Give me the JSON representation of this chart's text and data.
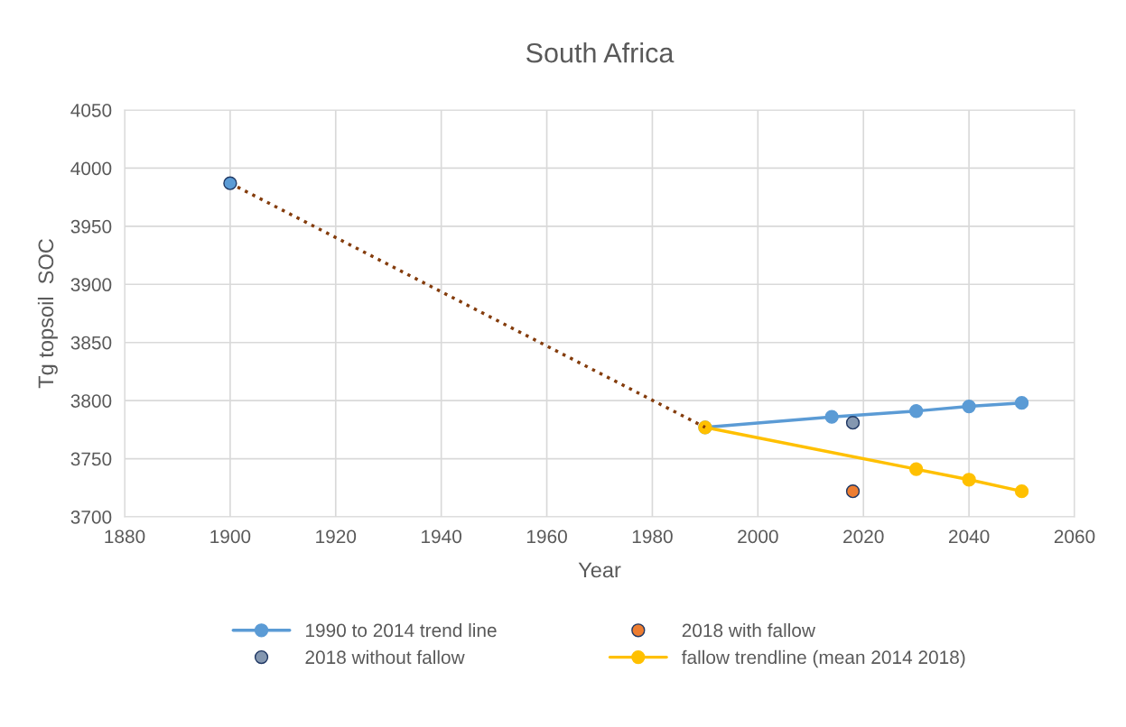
{
  "chart_data": {
    "type": "line",
    "title": "South Africa",
    "xlabel": "Year",
    "ylabel": "Tg topsoil  SOC",
    "xlim": [
      1880,
      2060
    ],
    "xticks": [
      1880,
      1900,
      1920,
      1940,
      1960,
      1980,
      2000,
      2020,
      2040,
      2060
    ],
    "ylim": [
      3700,
      4050
    ],
    "yticks": [
      3700,
      3750,
      3800,
      3850,
      3900,
      3950,
      4000,
      4050
    ],
    "grid": true,
    "legend": "bottom",
    "marker": "circle",
    "series": [
      {
        "name": "1990 to 2014 trend line",
        "color": "#5b9bd5",
        "x": [
          1990,
          2014,
          2030,
          2040,
          2050
        ],
        "values": [
          3777,
          3786,
          3791,
          3795,
          3798
        ]
      },
      {
        "name": "2018 with fallow",
        "type": "scatter",
        "color": "#ed7d31",
        "x": [
          2018
        ],
        "values": [
          3722
        ]
      },
      {
        "name": "2018 without fallow",
        "type": "scatter",
        "color": "#8497b0",
        "x": [
          2018
        ],
        "values": [
          3781
        ]
      },
      {
        "name": "fallow trendline (mean 2014 2018)",
        "color": "#ffc000",
        "x": [
          1990,
          2030,
          2040,
          2050
        ],
        "values": [
          3777,
          3741,
          3732,
          3722
        ]
      },
      {
        "color": "#843c0c",
        "line_style": "dotted",
        "marker": "none",
        "x": [
          1900,
          1990
        ],
        "values": [
          3987,
          3777
        ]
      },
      {
        "type": "scatter",
        "color": "#5b9bd5",
        "x": [
          1900
        ],
        "values": [
          3987
        ]
      }
    ]
  }
}
